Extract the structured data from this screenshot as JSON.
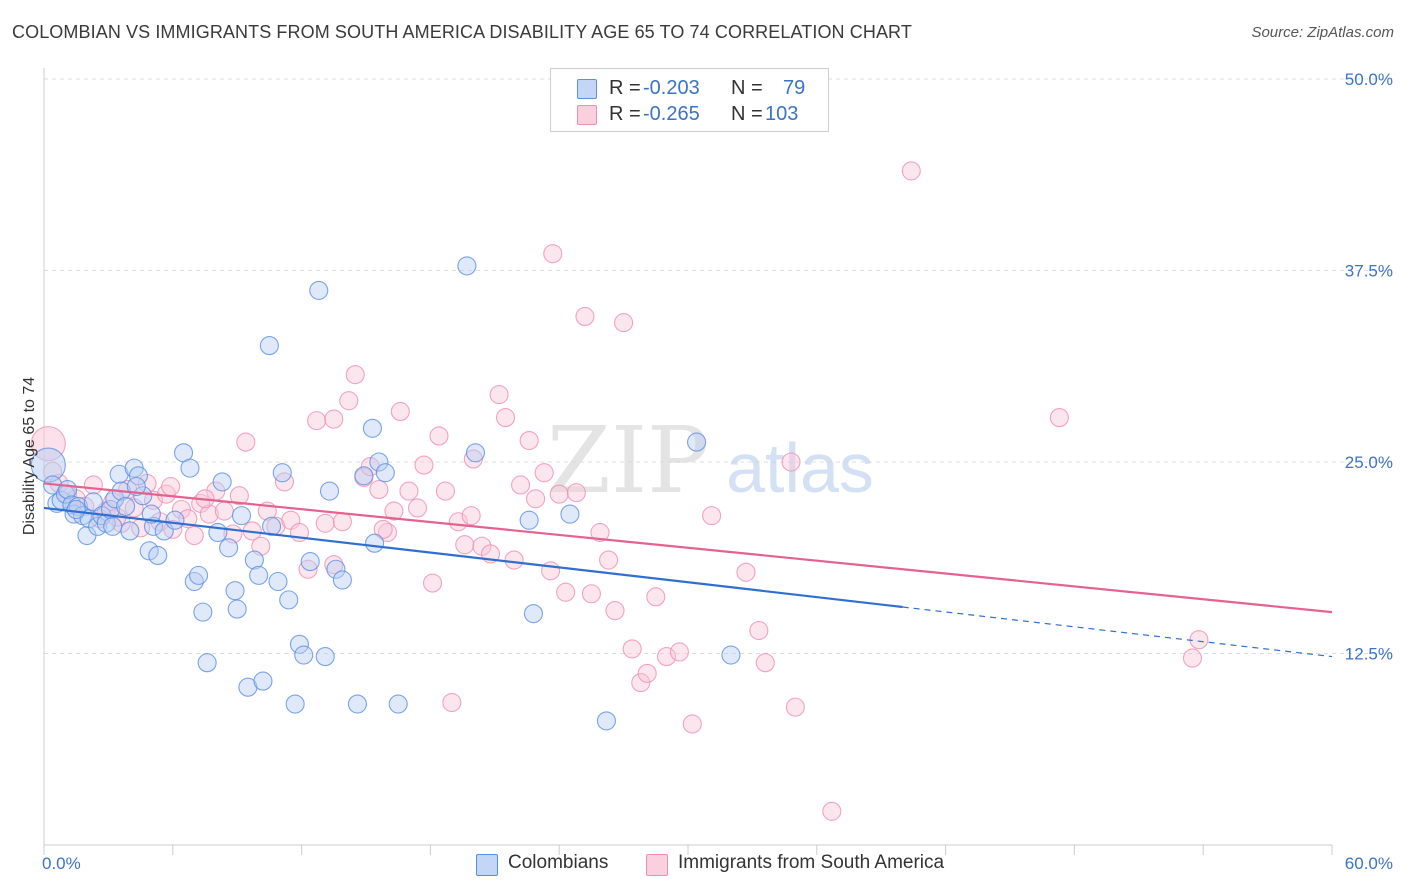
{
  "header": {
    "title": "COLOMBIAN VS IMMIGRANTS FROM SOUTH AMERICA DISABILITY AGE 65 TO 74 CORRELATION CHART",
    "source": "Source: ZipAtlas.com"
  },
  "watermark": {
    "part1": "ZIP",
    "part2": "atlas"
  },
  "legend": {
    "rows": [
      {
        "r_label": "R =",
        "r_value": "-0.203",
        "n_label": "N =",
        "n_value": "79",
        "color": "#5b8fd"
      },
      {
        "r_label": "R =",
        "r_value": "-0.265",
        "n_label": "N =",
        "n_value": "103",
        "color": "#f78fb3"
      }
    ]
  },
  "bottom_legend": {
    "items": [
      {
        "label": "Colombians",
        "color": "#5b8ee6"
      },
      {
        "label": "Immigrants from South America",
        "color": "#f08db0"
      }
    ]
  },
  "chart_data": {
    "type": "scatter",
    "title": "COLOMBIAN VS IMMIGRANTS FROM SOUTH AMERICA DISABILITY AGE 65 TO 74 CORRELATION CHART",
    "xlabel": "",
    "ylabel": "Disability Age 65 to 74",
    "xlim": [
      0,
      60
    ],
    "ylim": [
      0,
      50
    ],
    "x_tick_labels": [
      "0.0%",
      "60.0%"
    ],
    "y_ticks": [
      12.5,
      25.0,
      37.5,
      50.0
    ],
    "y_tick_labels": [
      "12.5%",
      "25.0%",
      "37.5%",
      "50.0%"
    ],
    "grid": true,
    "legend_position": "top-center",
    "series": [
      {
        "name": "Colombians",
        "color": "#5b8ee6",
        "trend": {
          "x0": 0,
          "y0": 22.0,
          "x1": 60,
          "y1": 12.3,
          "solid_until_x": 40
        },
        "points": [
          [
            0.2,
            24.8
          ],
          [
            0.4,
            23.5
          ],
          [
            0.6,
            22.3
          ],
          [
            0.8,
            22.5
          ],
          [
            1.0,
            22.9
          ],
          [
            1.1,
            23.2
          ],
          [
            1.3,
            22.2
          ],
          [
            1.4,
            21.6
          ],
          [
            1.6,
            22.1
          ],
          [
            1.8,
            21.5
          ],
          [
            2.0,
            20.2
          ],
          [
            2.1,
            21.3
          ],
          [
            2.3,
            22.4
          ],
          [
            2.5,
            20.8
          ],
          [
            2.7,
            21.5
          ],
          [
            2.9,
            21.0
          ],
          [
            3.1,
            21.9
          ],
          [
            3.3,
            22.6
          ],
          [
            3.5,
            24.2
          ],
          [
            3.6,
            23.1
          ],
          [
            3.8,
            22.1
          ],
          [
            4.0,
            20.5
          ],
          [
            4.2,
            24.6
          ],
          [
            4.4,
            24.1
          ],
          [
            4.6,
            22.8
          ],
          [
            4.9,
            19.2
          ],
          [
            5.1,
            20.8
          ],
          [
            5.3,
            18.9
          ],
          [
            5.6,
            20.5
          ],
          [
            6.1,
            21.2
          ],
          [
            6.5,
            25.6
          ],
          [
            6.8,
            24.6
          ],
          [
            7.0,
            17.2
          ],
          [
            7.2,
            17.6
          ],
          [
            7.4,
            15.2
          ],
          [
            7.6,
            11.9
          ],
          [
            8.1,
            20.4
          ],
          [
            8.3,
            23.7
          ],
          [
            8.6,
            19.4
          ],
          [
            8.9,
            16.6
          ],
          [
            9.0,
            15.4
          ],
          [
            9.2,
            21.5
          ],
          [
            9.5,
            10.3
          ],
          [
            9.8,
            18.6
          ],
          [
            10.0,
            17.6
          ],
          [
            10.2,
            10.7
          ],
          [
            10.6,
            20.8
          ],
          [
            10.9,
            17.2
          ],
          [
            11.1,
            24.3
          ],
          [
            11.4,
            16.0
          ],
          [
            11.7,
            9.2
          ],
          [
            11.9,
            13.1
          ],
          [
            12.1,
            12.4
          ],
          [
            12.4,
            18.5
          ],
          [
            12.8,
            36.2
          ],
          [
            13.1,
            12.3
          ],
          [
            13.3,
            23.1
          ],
          [
            13.6,
            18.0
          ],
          [
            13.9,
            17.3
          ],
          [
            14.6,
            9.2
          ],
          [
            14.9,
            24.1
          ],
          [
            15.3,
            27.2
          ],
          [
            15.6,
            25.0
          ],
          [
            15.9,
            24.3
          ],
          [
            15.4,
            19.7
          ],
          [
            16.5,
            9.2
          ],
          [
            10.5,
            32.6
          ],
          [
            19.7,
            37.8
          ],
          [
            20.1,
            25.6
          ],
          [
            22.6,
            21.2
          ],
          [
            22.8,
            15.1
          ],
          [
            24.5,
            21.6
          ],
          [
            26.2,
            8.1
          ],
          [
            30.4,
            26.3
          ],
          [
            32.0,
            12.4
          ],
          [
            4.3,
            23.4
          ],
          [
            5.0,
            21.6
          ],
          [
            3.2,
            20.8
          ],
          [
            1.5,
            21.9
          ]
        ]
      },
      {
        "name": "Immigrants from South America",
        "color": "#f08db0",
        "trend": {
          "x0": 0,
          "y0": 23.6,
          "x1": 60,
          "y1": 15.2
        },
        "points": [
          [
            0.2,
            26.2
          ],
          [
            0.4,
            24.4
          ],
          [
            0.7,
            23.6
          ],
          [
            1.1,
            22.9
          ],
          [
            1.5,
            22.6
          ],
          [
            1.9,
            22.1
          ],
          [
            2.3,
            23.5
          ],
          [
            2.6,
            21.3
          ],
          [
            2.9,
            21.8
          ],
          [
            3.2,
            22.4
          ],
          [
            3.6,
            21.0
          ],
          [
            3.9,
            23.2
          ],
          [
            4.2,
            22.0
          ],
          [
            4.5,
            20.7
          ],
          [
            4.8,
            23.6
          ],
          [
            5.1,
            22.5
          ],
          [
            5.4,
            21.1
          ],
          [
            5.7,
            22.9
          ],
          [
            6.0,
            20.6
          ],
          [
            6.4,
            21.9
          ],
          [
            6.7,
            21.3
          ],
          [
            7.0,
            20.2
          ],
          [
            7.3,
            22.3
          ],
          [
            7.7,
            21.6
          ],
          [
            8.0,
            23.1
          ],
          [
            8.4,
            21.8
          ],
          [
            8.8,
            20.3
          ],
          [
            9.1,
            22.8
          ],
          [
            9.4,
            26.3
          ],
          [
            9.7,
            20.5
          ],
          [
            10.1,
            19.5
          ],
          [
            10.4,
            21.8
          ],
          [
            10.8,
            20.8
          ],
          [
            11.2,
            23.7
          ],
          [
            11.5,
            21.2
          ],
          [
            11.9,
            20.4
          ],
          [
            12.3,
            18.0
          ],
          [
            12.7,
            27.7
          ],
          [
            13.1,
            21.0
          ],
          [
            13.5,
            27.8
          ],
          [
            13.9,
            21.1
          ],
          [
            14.2,
            29.0
          ],
          [
            14.5,
            30.7
          ],
          [
            14.9,
            24.0
          ],
          [
            15.2,
            24.7
          ],
          [
            15.6,
            23.2
          ],
          [
            16.0,
            20.4
          ],
          [
            16.3,
            21.8
          ],
          [
            16.6,
            28.3
          ],
          [
            17.0,
            23.1
          ],
          [
            17.4,
            22.0
          ],
          [
            17.7,
            24.8
          ],
          [
            18.1,
            17.1
          ],
          [
            18.4,
            26.7
          ],
          [
            18.7,
            23.1
          ],
          [
            19.0,
            9.3
          ],
          [
            19.3,
            21.1
          ],
          [
            19.6,
            19.6
          ],
          [
            20.0,
            25.2
          ],
          [
            20.4,
            19.5
          ],
          [
            20.8,
            19.0
          ],
          [
            21.2,
            29.4
          ],
          [
            21.5,
            27.9
          ],
          [
            21.9,
            18.6
          ],
          [
            22.2,
            23.5
          ],
          [
            22.6,
            26.4
          ],
          [
            22.9,
            22.6
          ],
          [
            23.3,
            24.3
          ],
          [
            23.6,
            17.9
          ],
          [
            24.0,
            22.9
          ],
          [
            24.3,
            16.5
          ],
          [
            24.8,
            23.0
          ],
          [
            25.2,
            34.5
          ],
          [
            25.5,
            16.4
          ],
          [
            25.9,
            20.4
          ],
          [
            26.3,
            18.6
          ],
          [
            26.6,
            15.3
          ],
          [
            27.0,
            34.1
          ],
          [
            27.4,
            12.8
          ],
          [
            27.8,
            10.6
          ],
          [
            28.1,
            11.2
          ],
          [
            28.5,
            16.2
          ],
          [
            29.0,
            12.3
          ],
          [
            29.6,
            12.6
          ],
          [
            30.2,
            7.9
          ],
          [
            31.1,
            21.5
          ],
          [
            32.7,
            17.8
          ],
          [
            33.3,
            14.0
          ],
          [
            33.6,
            11.9
          ],
          [
            34.8,
            25.0
          ],
          [
            35.0,
            9.0
          ],
          [
            36.7,
            2.2
          ],
          [
            40.4,
            44.0
          ],
          [
            47.3,
            27.9
          ],
          [
            53.5,
            12.2
          ],
          [
            53.8,
            13.4
          ],
          [
            23.7,
            38.6
          ],
          [
            13.5,
            18.3
          ],
          [
            7.5,
            22.6
          ],
          [
            5.9,
            23.4
          ],
          [
            15.8,
            20.6
          ],
          [
            19.9,
            21.5
          ],
          [
            3.4,
            21.4
          ]
        ]
      }
    ]
  }
}
